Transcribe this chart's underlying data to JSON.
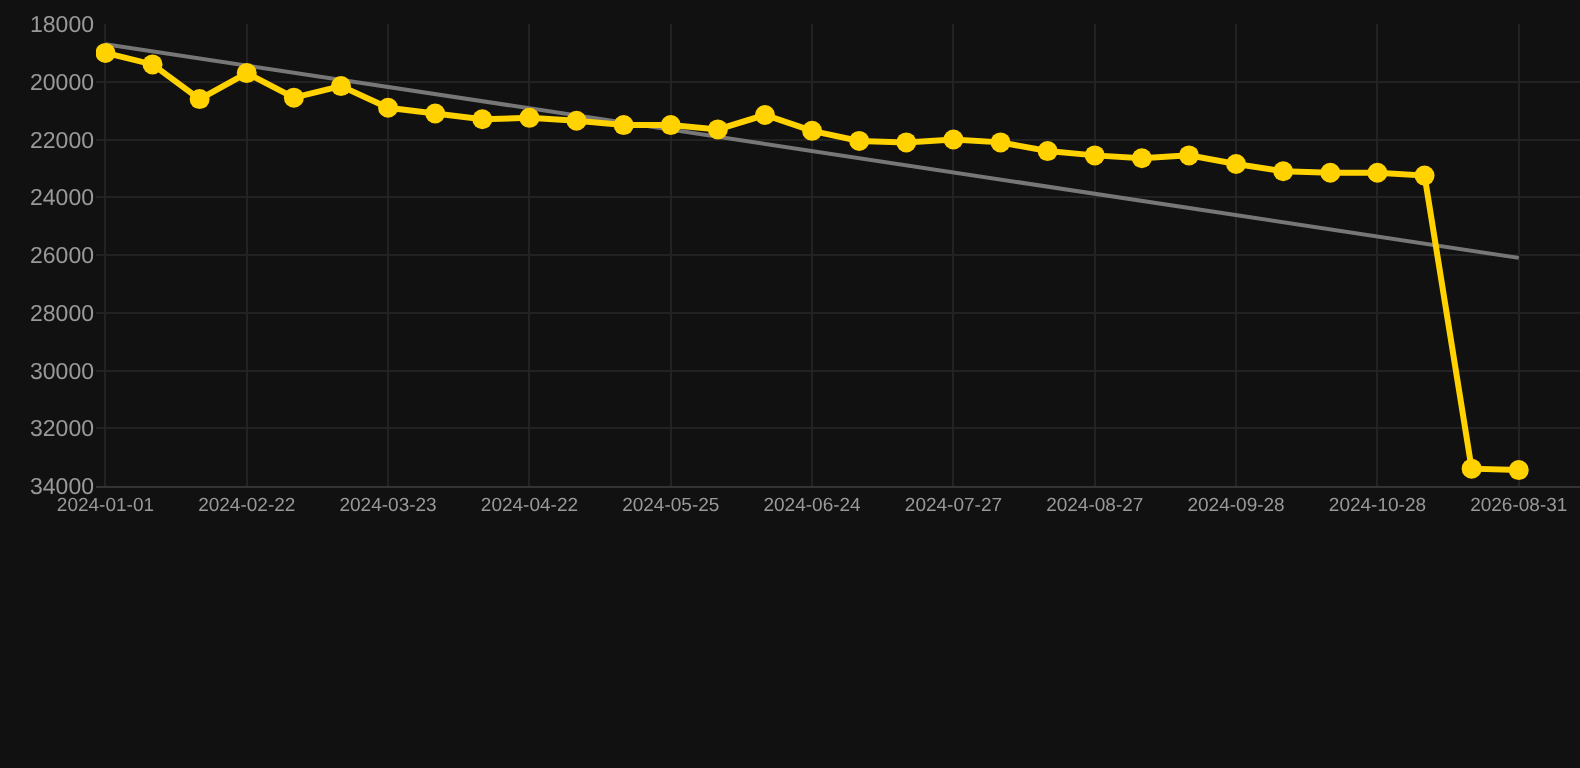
{
  "chart_data": {
    "type": "line",
    "categories": [
      "2024-01-01",
      null,
      null,
      "2024-02-22",
      null,
      null,
      "2024-03-23",
      null,
      null,
      "2024-04-22",
      null,
      null,
      "2024-05-25",
      null,
      null,
      "2024-06-24",
      null,
      null,
      "2024-07-27",
      null,
      null,
      "2024-08-27",
      null,
      null,
      "2024-09-28",
      null,
      null,
      "2024-10-28",
      null,
      null,
      "2026-08-31"
    ],
    "series": [
      {
        "color": "#ffd200",
        "marker": "circle",
        "values": [
          19000,
          19400,
          20600,
          19700,
          20550,
          20150,
          20900,
          21100,
          21300,
          21250,
          21350,
          21500,
          21500,
          21650,
          21150,
          21700,
          22050,
          22100,
          22000,
          22100,
          22400,
          22550,
          22650,
          22550,
          22850,
          23100,
          23150,
          23150,
          23250,
          33400,
          33450
        ]
      },
      {
        "color": "#777777",
        "marker": "none",
        "values": [
          18700,
          null,
          null,
          null,
          null,
          null,
          null,
          null,
          null,
          null,
          null,
          null,
          null,
          null,
          null,
          null,
          null,
          null,
          null,
          null,
          null,
          null,
          null,
          null,
          null,
          null,
          null,
          null,
          null,
          null,
          26100
        ]
      }
    ],
    "ylim": [
      34000,
      18000
    ],
    "yticks": [
      18000,
      20000,
      22000,
      24000,
      26000,
      28000,
      30000,
      32000,
      34000
    ],
    "grid": true
  }
}
